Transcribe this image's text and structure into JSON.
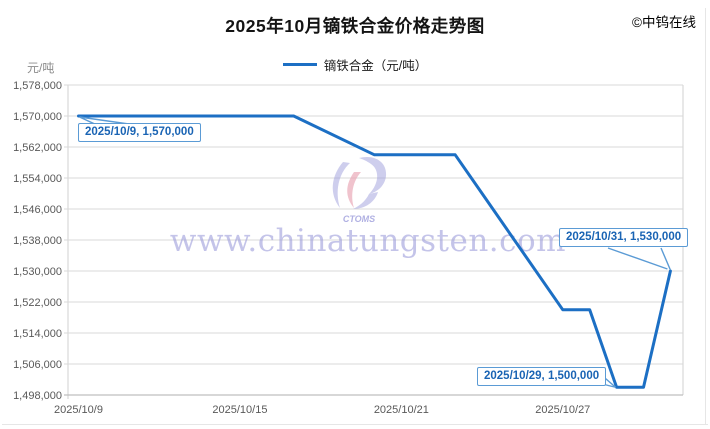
{
  "header": {
    "title": "2025年10月镝铁合金价格走势图",
    "copyright": "©中钨在线"
  },
  "legend": {
    "label": "镝铁合金（元/吨）"
  },
  "watermark": {
    "text": "www.chinatungsten.com",
    "logo_text": "CTOMS"
  },
  "axes": {
    "y_unit": "元/吨",
    "y_tick_labels": [
      "1,578,000",
      "1,570,000",
      "1,562,000",
      "1,554,000",
      "1,546,000",
      "1,538,000",
      "1,530,000",
      "1,522,000",
      "1,514,000",
      "1,506,000",
      "1,498,000"
    ],
    "x_tick_labels": [
      {
        "label": "2025/10/9",
        "day": 9
      },
      {
        "label": "2025/10/15",
        "day": 15
      },
      {
        "label": "2025/10/21",
        "day": 21
      },
      {
        "label": "2025/10/27",
        "day": 27
      }
    ]
  },
  "chart_data": {
    "type": "line",
    "title": "2025年10月镝铁合金价格走势图",
    "ylabel": "元/吨",
    "ylim": [
      1498000,
      1578000
    ],
    "y_tick_step": 8000,
    "x_axis": {
      "unit": "calendar-day",
      "start_day": 9,
      "end_day": 31,
      "month": "2025/10"
    },
    "grid": "horizontal",
    "legend_position": "top-center",
    "series": [
      {
        "name": "镝铁合金（元/吨）",
        "points": [
          {
            "date": "2025/10/9",
            "day": 9,
            "value": 1570000
          },
          {
            "date": "2025/10/10",
            "day": 10,
            "value": 1570000
          },
          {
            "date": "2025/10/13",
            "day": 13,
            "value": 1570000
          },
          {
            "date": "2025/10/14",
            "day": 14,
            "value": 1570000
          },
          {
            "date": "2025/10/15",
            "day": 15,
            "value": 1570000
          },
          {
            "date": "2025/10/16",
            "day": 16,
            "value": 1570000
          },
          {
            "date": "2025/10/17",
            "day": 17,
            "value": 1570000
          },
          {
            "date": "2025/10/20",
            "day": 20,
            "value": 1560000
          },
          {
            "date": "2025/10/21",
            "day": 21,
            "value": 1560000
          },
          {
            "date": "2025/10/22",
            "day": 22,
            "value": 1560000
          },
          {
            "date": "2025/10/23",
            "day": 23,
            "value": 1560000
          },
          {
            "date": "2025/10/24",
            "day": 24,
            "value": 1550000
          },
          {
            "date": "2025/10/27",
            "day": 27,
            "value": 1520000
          },
          {
            "date": "2025/10/28",
            "day": 28,
            "value": 1520000
          },
          {
            "date": "2025/10/29",
            "day": 29,
            "value": 1500000
          },
          {
            "date": "2025/10/30",
            "day": 30,
            "value": 1500000
          },
          {
            "date": "2025/10/31",
            "day": 31,
            "value": 1530000
          }
        ]
      }
    ]
  },
  "annotations": [
    {
      "text": "2025/10/9, 1,570,000",
      "day": 9,
      "value": 1570000
    },
    {
      "text": "2025/10/31, 1,530,000",
      "day": 31,
      "value": 1530000
    },
    {
      "text": "2025/10/29, 1,500,000",
      "day": 29,
      "value": 1500000
    }
  ],
  "colors": {
    "line": "#1C6FC4",
    "callout_border": "#5B9BD5",
    "callout_text": "#1A64B4",
    "grid": "#D9D9D9",
    "axis_line": "#BFBFBF",
    "axis_text": "#595959",
    "watermark": "#9D9DDC",
    "watermark_pink": "#E8A3B2"
  }
}
